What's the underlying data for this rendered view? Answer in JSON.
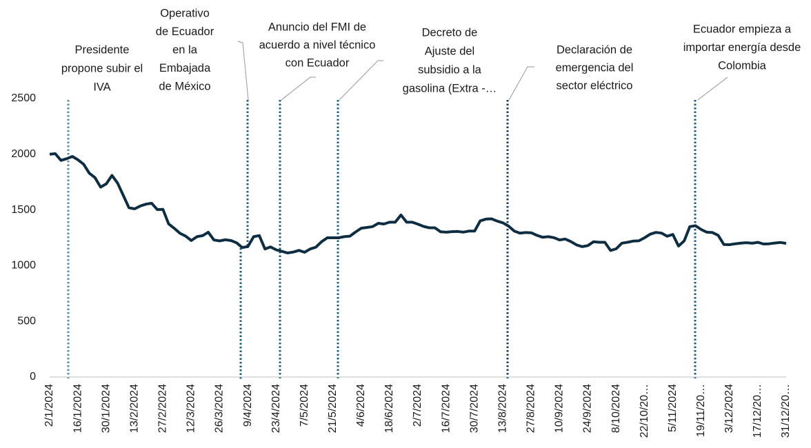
{
  "chart_data": {
    "type": "line",
    "categories": [
      "2/1/2024",
      null,
      null,
      null,
      null,
      "16/1/2024",
      null,
      null,
      null,
      null,
      "30/1/2024",
      null,
      null,
      null,
      null,
      "13/2/2024",
      null,
      null,
      null,
      null,
      "27/2/2024",
      null,
      null,
      null,
      null,
      "12/3/2024",
      null,
      null,
      null,
      null,
      "26/3/2024",
      null,
      null,
      null,
      null,
      "9/4/2024",
      null,
      null,
      null,
      null,
      "23/4/2024",
      null,
      null,
      null,
      null,
      "7/5/2024",
      null,
      null,
      null,
      null,
      "21/5/2024",
      null,
      null,
      null,
      null,
      "4/6/2024",
      null,
      null,
      null,
      null,
      "18/6/2024",
      null,
      null,
      null,
      null,
      "2/7/2024",
      null,
      null,
      null,
      null,
      "16/7/2024",
      null,
      null,
      null,
      null,
      "30/7/2024",
      null,
      null,
      null,
      null,
      "13/8/2024",
      null,
      null,
      null,
      null,
      "27/8/2024",
      null,
      null,
      null,
      null,
      "10/9/2024",
      null,
      null,
      null,
      null,
      "24/9/2024",
      null,
      null,
      null,
      null,
      "8/10/2024",
      null,
      null,
      null,
      null,
      "22/10/20…",
      null,
      null,
      null,
      null,
      "5/11/2024",
      null,
      null,
      null,
      null,
      "19/11/20…",
      null,
      null,
      null,
      null,
      "3/12/2024",
      null,
      null,
      null,
      null,
      "17/12/20…",
      null,
      null,
      null,
      null,
      "31/12/20…"
    ],
    "series": [
      {
        "color": "#0f2d40",
        "values": [
          2000,
          2005,
          1945,
          1960,
          1980,
          1950,
          1910,
          1830,
          1790,
          1705,
          1735,
          1810,
          1740,
          1630,
          1520,
          1510,
          1535,
          1552,
          1560,
          1503,
          1505,
          1375,
          1335,
          1290,
          1265,
          1225,
          1260,
          1269,
          1300,
          1230,
          1222,
          1232,
          1225,
          1205,
          1162,
          1172,
          1260,
          1270,
          1150,
          1168,
          1142,
          1128,
          1114,
          1122,
          1137,
          1120,
          1150,
          1166,
          1215,
          1250,
          1250,
          1250,
          1260,
          1265,
          1302,
          1336,
          1343,
          1350,
          1380,
          1374,
          1390,
          1390,
          1455,
          1390,
          1390,
          1372,
          1352,
          1340,
          1340,
          1304,
          1300,
          1305,
          1307,
          1301,
          1310,
          1310,
          1402,
          1418,
          1420,
          1400,
          1384,
          1355,
          1310,
          1292,
          1297,
          1295,
          1272,
          1255,
          1260,
          1251,
          1231,
          1239,
          1216,
          1186,
          1170,
          1180,
          1215,
          1210,
          1210,
          1136,
          1151,
          1202,
          1210,
          1220,
          1223,
          1250,
          1282,
          1298,
          1292,
          1264,
          1280,
          1176,
          1222,
          1350,
          1358,
          1324,
          1300,
          1297,
          1272,
          1190,
          1188,
          1196,
          1202,
          1206,
          1201,
          1209,
          1194,
          1196,
          1203,
          1208,
          1200
        ]
      }
    ],
    "ylim": [
      0,
      2500
    ],
    "yticks": [
      0,
      500,
      1000,
      1500,
      2000,
      2500
    ],
    "events": [
      {
        "label": [
          "Presidente",
          "propone subir el",
          "IVA"
        ]
      },
      {
        "label": [
          "Operativo",
          "de Ecuador",
          "en la",
          "Embajada",
          "de México"
        ]
      },
      {
        "label": [
          "Anuncio del FMI de",
          "acuerdo a nivel técnico",
          "con Ecuador"
        ]
      },
      {
        "label": [
          "Decreto de",
          "Ajuste del",
          "subsidio a la",
          "gasolina (Extra -…"
        ]
      },
      {
        "label": [
          "Declaración de",
          "emergencia del",
          "sector eléctrico"
        ]
      },
      {
        "label": [
          "Ecuador empieza a",
          "importar energía desde",
          "Colombia"
        ]
      }
    ]
  }
}
